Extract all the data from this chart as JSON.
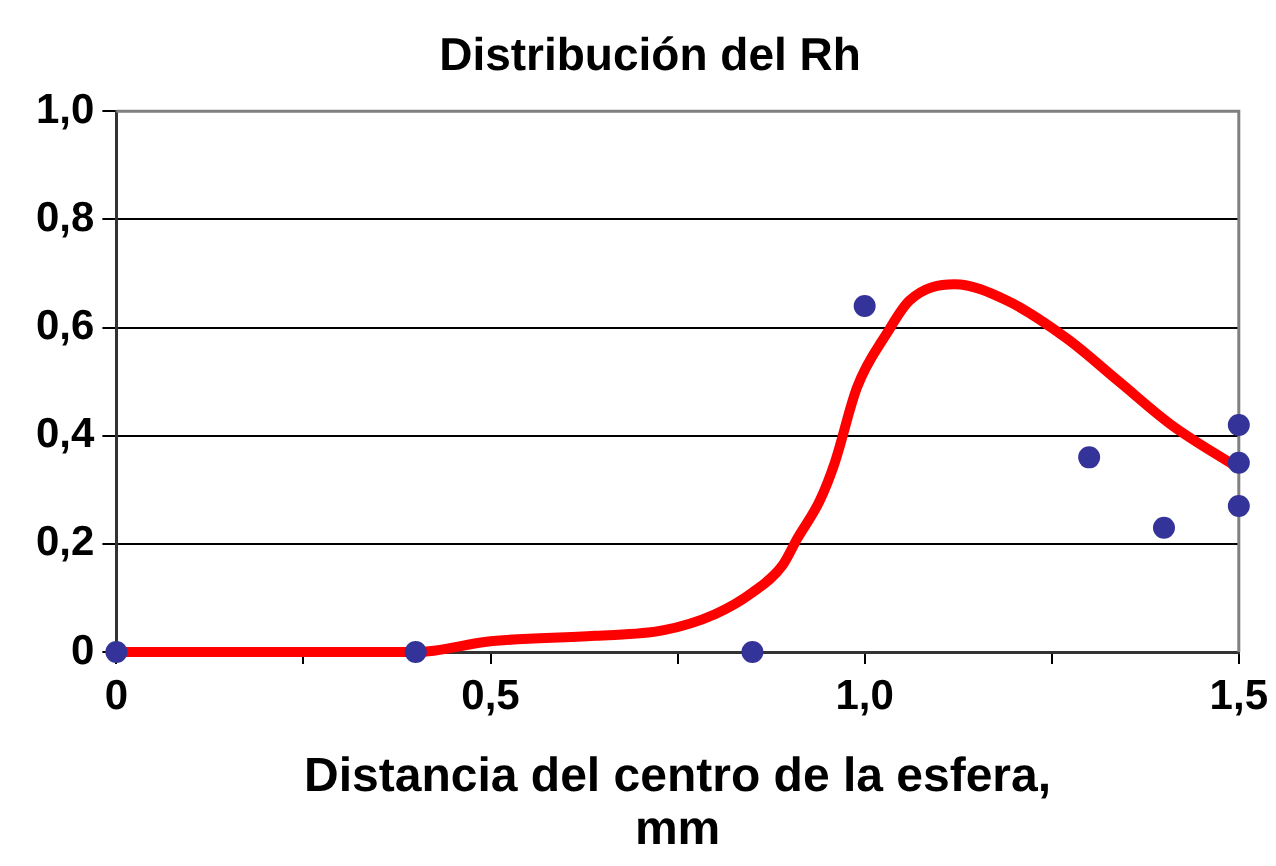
{
  "chart_data": {
    "type": "scatter",
    "title": "Distribución del Rh",
    "xlabel": "Distancia del centro de la esfera, mm",
    "xlim": [
      0,
      1.5
    ],
    "xticks": [
      0,
      {
        "value": 0.25,
        "label": null
      },
      {
        "value": 0.5,
        "label": "0,5"
      },
      {
        "value": 0.75,
        "label": null
      },
      {
        "value": 1.0,
        "label": "1,0"
      },
      {
        "value": 1.25,
        "label": null
      },
      {
        "value": 1.5,
        "label": "1,5"
      }
    ],
    "ylim": [
      0,
      1.0
    ],
    "yticks": [
      0,
      {
        "value": 0.2,
        "label": "0,2"
      },
      {
        "value": 0.4,
        "label": "0,4"
      },
      {
        "value": 0.6,
        "label": "0,6"
      },
      {
        "value": 0.8,
        "label": "0,8"
      },
      {
        "value": 1.0,
        "label": "1,0"
      }
    ],
    "grid": "y",
    "series": [
      {
        "color": "#333399",
        "marker": "circle",
        "x": [
          0,
          0.4,
          0.85,
          1.0,
          1.3,
          1.4,
          1.5,
          1.5,
          1.5
        ],
        "values": [
          0,
          0,
          0,
          0.64,
          0.36,
          0.23,
          0.42,
          0.35,
          0.27
        ]
      },
      {
        "type": "line",
        "color": "#ff0000",
        "x": [
          0,
          0.2,
          0.4,
          0.5,
          0.64,
          0.73,
          0.8,
          0.85,
          0.89,
          0.91,
          0.94,
          0.96,
          0.99,
          1.03,
          1.06,
          1.12,
          1.19,
          1.27,
          1.34,
          1.41,
          1.5
        ],
        "values": [
          0,
          0,
          0,
          0.02,
          0.03,
          0.04,
          0.07,
          0.11,
          0.16,
          0.21,
          0.28,
          0.35,
          0.49,
          0.59,
          0.65,
          0.68,
          0.65,
          0.58,
          0.5,
          0.42,
          0.34
        ]
      }
    ]
  }
}
